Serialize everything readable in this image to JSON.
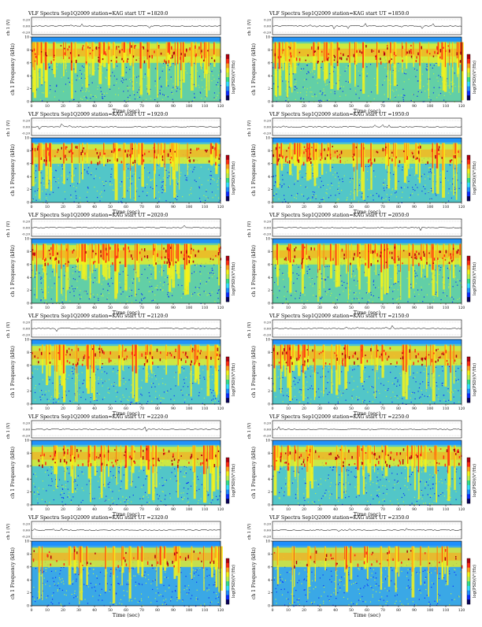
{
  "page": {
    "title_prefix": "VLF Spectra",
    "date": "Sep1Q2009",
    "station": "station=KAG",
    "start_label": "start UT ="
  },
  "colors": {
    "bg_blue": "#2f8fd6",
    "spectral": [
      "#08005a",
      "#0a2cff",
      "#1c8cff",
      "#2fe0ff",
      "#33e08a",
      "#b8f04a",
      "#f4f21a",
      "#ff9d1a",
      "#ff2a12",
      "#b00010"
    ]
  },
  "axis_labels": {
    "ch_label": "ch 1 (V)",
    "freq_label": "ch 1 Frequency (kHz)",
    "time_label": "Time (sec)",
    "colorbar_label": "log(PSD)(V²/Hz)"
  },
  "chart_data": [
    {
      "type": "heatmap",
      "panel_title": "VLF Spectra   Sep1Q2009   station=KAG  start  UT =1820:0",
      "start_ut": "1820:0",
      "xlim": [
        0,
        120
      ],
      "ylim": [
        0,
        10
      ],
      "x_ticks": [
        0,
        10,
        20,
        30,
        40,
        50,
        60,
        70,
        80,
        90,
        100,
        110,
        120
      ],
      "y_ticks": [
        0,
        2,
        4,
        6,
        8,
        10
      ],
      "waveform_ticks": [
        "0.20",
        "0.00",
        "-0.20"
      ],
      "intensity": "high"
    },
    {
      "type": "heatmap",
      "panel_title": "VLF Spectra   Sep1Q2009   station=KAG  start  UT =1850:0",
      "start_ut": "1850:0",
      "xlim": [
        0,
        120
      ],
      "ylim": [
        0,
        10
      ],
      "x_ticks": [
        0,
        10,
        20,
        30,
        40,
        50,
        60,
        70,
        80,
        90,
        100,
        110,
        120
      ],
      "y_ticks": [
        0,
        2,
        4,
        6,
        8,
        10
      ],
      "waveform_ticks": [
        "0.20",
        "0.00",
        "-0.20"
      ],
      "intensity": "high"
    },
    {
      "type": "heatmap",
      "panel_title": "VLF Spectra   Sep1Q2009   station=KAG  start  UT =1920:0",
      "start_ut": "1920:0",
      "xlim": [
        0,
        120
      ],
      "ylim": [
        0,
        10
      ],
      "x_ticks": [
        0,
        10,
        20,
        30,
        40,
        50,
        60,
        70,
        80,
        90,
        100,
        110,
        120
      ],
      "y_ticks": [
        0,
        2,
        4,
        6,
        8,
        10
      ],
      "waveform_ticks": [
        "0.20",
        "0.00",
        "-0.20"
      ],
      "intensity": "medium"
    },
    {
      "type": "heatmap",
      "panel_title": "VLF Spectra   Sep1Q2009   station=KAG  start  UT =1950:0",
      "start_ut": "1950:0",
      "xlim": [
        0,
        120
      ],
      "ylim": [
        0,
        10
      ],
      "x_ticks": [
        0,
        10,
        20,
        30,
        40,
        50,
        60,
        70,
        80,
        90,
        100,
        110,
        120
      ],
      "y_ticks": [
        0,
        2,
        4,
        6,
        8,
        10
      ],
      "waveform_ticks": [
        "0.20",
        "0.00",
        "-0.20"
      ],
      "intensity": "medium"
    },
    {
      "type": "heatmap",
      "panel_title": "VLF Spectra   Sep1Q2009   station=KAG  start  UT =2020:0",
      "start_ut": "2020:0",
      "xlim": [
        0,
        120
      ],
      "ylim": [
        0,
        10
      ],
      "x_ticks": [
        0,
        10,
        20,
        30,
        40,
        50,
        60,
        70,
        80,
        90,
        100,
        110,
        120
      ],
      "y_ticks": [
        0,
        2,
        4,
        6,
        8,
        10
      ],
      "waveform_ticks": [
        "0.20",
        "0.00",
        "-0.20"
      ],
      "intensity": "high"
    },
    {
      "type": "heatmap",
      "panel_title": "VLF Spectra   Sep1Q2009   station=KAG  start  UT =2050:0",
      "start_ut": "2050:0",
      "xlim": [
        0,
        120
      ],
      "ylim": [
        0,
        10
      ],
      "x_ticks": [
        0,
        10,
        20,
        30,
        40,
        50,
        60,
        70,
        80,
        90,
        100,
        110,
        120
      ],
      "y_ticks": [
        0,
        2,
        4,
        6,
        8,
        10
      ],
      "waveform_ticks": [
        "0.20",
        "0.00",
        "-0.20"
      ],
      "intensity": "high"
    },
    {
      "type": "heatmap",
      "panel_title": "VLF Spectra   Sep1Q2009   station=KAG  start  UT =2120:0",
      "start_ut": "2120:0",
      "xlim": [
        0,
        120
      ],
      "ylim": [
        0,
        10
      ],
      "x_ticks": [
        0,
        10,
        20,
        30,
        40,
        50,
        60,
        70,
        80,
        90,
        100,
        110,
        120
      ],
      "y_ticks": [
        0,
        2,
        4,
        6,
        8,
        10
      ],
      "waveform_ticks": [
        "0.20",
        "0.00",
        "-0.20"
      ],
      "intensity": "medium"
    },
    {
      "type": "heatmap",
      "panel_title": "VLF Spectra   Sep1Q2009   station=KAG  start  UT =2150:0",
      "start_ut": "2150:0",
      "xlim": [
        0,
        120
      ],
      "ylim": [
        0,
        10
      ],
      "x_ticks": [
        0,
        10,
        20,
        30,
        40,
        50,
        60,
        70,
        80,
        90,
        100,
        110,
        120
      ],
      "y_ticks": [
        0,
        2,
        4,
        6,
        8,
        10
      ],
      "waveform_ticks": [
        "0.20",
        "0.00",
        "-0.20"
      ],
      "intensity": "medium"
    },
    {
      "type": "heatmap",
      "panel_title": "VLF Spectra   Sep1Q2009   station=KAG  start  UT =2220:0",
      "start_ut": "2220:0",
      "xlim": [
        0,
        120
      ],
      "ylim": [
        0,
        10
      ],
      "x_ticks": [
        0,
        10,
        20,
        30,
        40,
        50,
        60,
        70,
        80,
        90,
        100,
        110,
        120
      ],
      "y_ticks": [
        0,
        2,
        4,
        6,
        8,
        10
      ],
      "waveform_ticks": [
        "0.20",
        "0.00",
        "-0.20"
      ],
      "intensity": "medium"
    },
    {
      "type": "heatmap",
      "panel_title": "VLF Spectra   Sep1Q2009   station=KAG  start  UT =2250:0",
      "start_ut": "2250:0",
      "xlim": [
        0,
        120
      ],
      "ylim": [
        0,
        10
      ],
      "x_ticks": [
        0,
        10,
        20,
        30,
        40,
        50,
        60,
        70,
        80,
        90,
        100,
        110,
        120
      ],
      "y_ticks": [
        0,
        2,
        4,
        6,
        8,
        10
      ],
      "waveform_ticks": [
        "0.20",
        "0.00",
        "-0.20"
      ],
      "intensity": "medium"
    },
    {
      "type": "heatmap",
      "panel_title": "VLF Spectra   Sep1Q2009   station=KAG  start  UT =2320:0",
      "start_ut": "2320:0",
      "xlim": [
        0,
        120
      ],
      "ylim": [
        0,
        10
      ],
      "x_ticks": [
        0,
        10,
        20,
        30,
        40,
        50,
        60,
        70,
        80,
        90,
        100,
        110,
        120
      ],
      "y_ticks": [
        0,
        2,
        4,
        6,
        8,
        10
      ],
      "waveform_ticks": [
        "0.20",
        "0.00",
        "-0.20"
      ],
      "intensity": "low"
    },
    {
      "type": "heatmap",
      "panel_title": "VLF Spectra   Sep1Q2009   station=KAG  start  UT =2350:0",
      "start_ut": "2350:0",
      "xlim": [
        0,
        120
      ],
      "ylim": [
        0,
        10
      ],
      "x_ticks": [
        0,
        10,
        20,
        30,
        40,
        50,
        60,
        70,
        80,
        90,
        100,
        110,
        120
      ],
      "y_ticks": [
        0,
        2,
        4,
        6,
        8,
        10
      ],
      "waveform_ticks": [
        "0.20",
        "0.00",
        "-0.20"
      ],
      "intensity": "low"
    }
  ]
}
